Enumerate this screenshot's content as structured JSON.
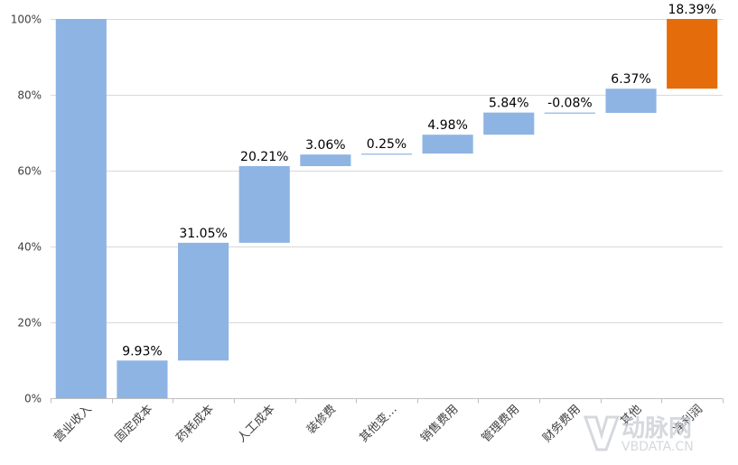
{
  "chart_data": {
    "type": "bar",
    "subtype": "waterfall",
    "title": "",
    "xlabel": "",
    "ylabel": "",
    "ylim": [
      0,
      100
    ],
    "y_ticks": [
      "0%",
      "20%",
      "40%",
      "60%",
      "80%",
      "100%"
    ],
    "y_tick_values": [
      0,
      20,
      40,
      60,
      80,
      100
    ],
    "grid": true,
    "categories": [
      "营业收入",
      "固定成本",
      "药耗成本",
      "人工成本",
      "装修费",
      "其他变…",
      "销售费用",
      "管理费用",
      "财务费用",
      "其他",
      "净利润"
    ],
    "bars": [
      {
        "bottom": 0,
        "top": 100,
        "label": ""
      },
      {
        "bottom": 0,
        "top": 9.93,
        "label": "9.93%"
      },
      {
        "bottom": 9.93,
        "top": 40.98,
        "label": "31.05%"
      },
      {
        "bottom": 40.98,
        "top": 61.19,
        "label": "20.21%"
      },
      {
        "bottom": 61.19,
        "top": 64.25,
        "label": "3.06%"
      },
      {
        "bottom": 64.25,
        "top": 64.5,
        "label": "0.25%"
      },
      {
        "bottom": 64.5,
        "top": 69.48,
        "label": "4.98%"
      },
      {
        "bottom": 69.48,
        "top": 75.32,
        "label": "5.84%"
      },
      {
        "bottom": 75.24,
        "top": 75.32,
        "label": "-0.08%"
      },
      {
        "bottom": 75.24,
        "top": 81.61,
        "label": "6.37%"
      },
      {
        "bottom": 81.61,
        "top": 100,
        "label": "18.39%"
      }
    ],
    "colors": {
      "bar": "#8eb4e3",
      "highlight": "#e46c0a",
      "highlight_index": 10
    }
  },
  "watermark": {
    "brand": "动脉网",
    "domain": "VBDATA.CN"
  }
}
